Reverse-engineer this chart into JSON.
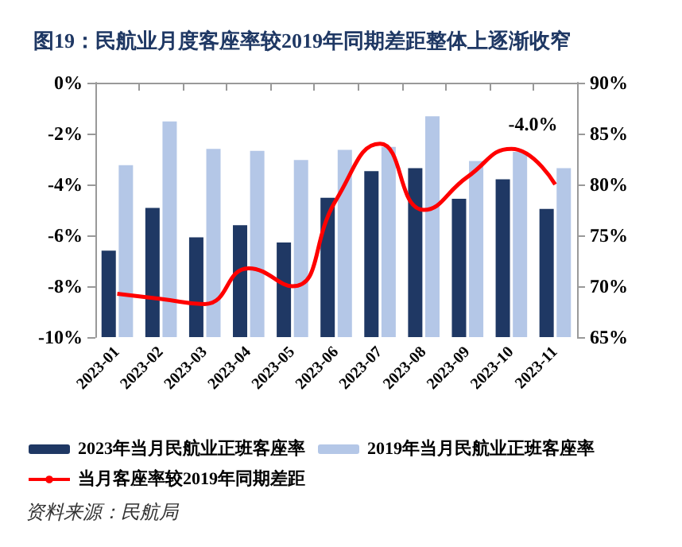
{
  "chart_data": {
    "type": "bar",
    "title": "图19：民航业月度客座率较2019年同期差距整体上逐渐收窄",
    "categories": [
      "2023-01",
      "2023-02",
      "2023-03",
      "2023-04",
      "2023-05",
      "2023-06",
      "2023-07",
      "2023-08",
      "2023-09",
      "2023-10",
      "2023-11"
    ],
    "series": [
      {
        "name": "2023年当月民航业正班客座率",
        "color": "#1f3864",
        "axis": "y2",
        "values": [
          73.5,
          77.7,
          74.8,
          76.0,
          74.3,
          78.7,
          81.3,
          81.6,
          78.6,
          80.5,
          77.6
        ]
      },
      {
        "name": "2019年当月民航业正班客座率",
        "color": "#b4c7e7",
        "axis": "y2",
        "values": [
          81.9,
          86.2,
          83.5,
          83.3,
          82.4,
          83.4,
          83.7,
          86.7,
          82.3,
          83.2,
          81.6
        ]
      },
      {
        "name": "当月客座率较2019年同期差距",
        "color": "#ff0000",
        "type": "line",
        "axis": "y",
        "values": [
          -8.3,
          -8.5,
          -8.7,
          -7.3,
          -8.0,
          -4.6,
          -2.4,
          -5.0,
          -3.7,
          -2.6,
          -4.0
        ]
      }
    ],
    "ylim": [
      -10,
      0
    ],
    "yticks": [
      {
        "value": -10,
        "label": "-10%"
      },
      {
        "value": -8,
        "label": "-8%"
      },
      {
        "value": -6,
        "label": "-6%"
      },
      {
        "value": -4,
        "label": "-4%"
      },
      {
        "value": -2,
        "label": "-2%"
      },
      {
        "value": 0,
        "label": "0%"
      }
    ],
    "y2lim": [
      65,
      90
    ],
    "y2ticks": [
      {
        "value": 65,
        "label": "65%"
      },
      {
        "value": 70,
        "label": "70%"
      },
      {
        "value": 75,
        "label": "75%"
      },
      {
        "value": 80,
        "label": "80%"
      },
      {
        "value": 85,
        "label": "85%"
      },
      {
        "value": 90,
        "label": "90%"
      }
    ],
    "annotations": [
      {
        "text": "-4.0%",
        "x": "2023-11",
        "y": -4.0
      },
      "资料来源：民航局"
    ],
    "legend": "bottom",
    "grid": false,
    "marker": "none"
  }
}
